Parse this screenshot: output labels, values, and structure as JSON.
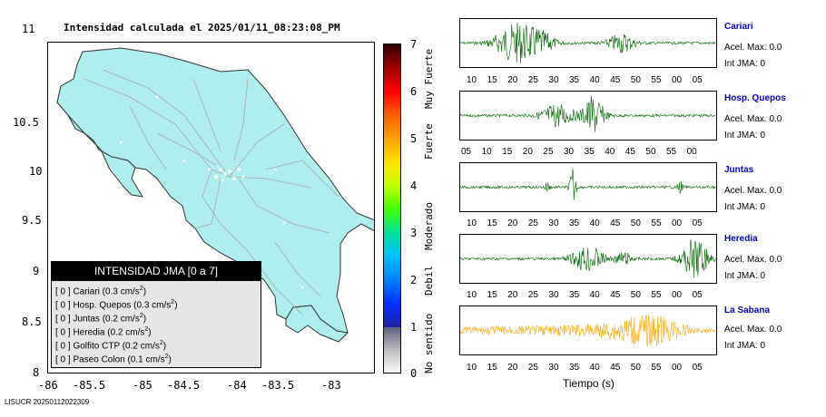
{
  "map": {
    "title": "Intensidad calculada el 2025/01/11_08:23:08_PM",
    "y_ticks": [
      "11",
      "10.5",
      "10",
      "9.5",
      "9",
      "8.5",
      "8"
    ],
    "x_ticks": [
      "-86",
      "-85.5",
      "-85",
      "-84.5",
      "-84",
      "-83.5",
      "-83"
    ],
    "land_color": "#b0eeee",
    "road_color": "#a8a8a8",
    "legend": {
      "header": "INTENSIDAD JMA [0 a 7]",
      "rows": [
        {
          "text": "[ 0 ]  Cariari (0.3 cm/s",
          "sup": "2",
          "tail": ")"
        },
        {
          "text": "[ 0 ]  Hosp. Quepos (0.3 cm/s",
          "sup": "2",
          "tail": ")"
        },
        {
          "text": "[ 0 ]  Juntas (0.2 cm/s",
          "sup": "2",
          "tail": ")"
        },
        {
          "text": "[ 0 ]  Heredia (0.2 cm/s",
          "sup": "2",
          "tail": ")"
        },
        {
          "text": "[ 0 ]  Golfito CTP (0.2 cm/s",
          "sup": "2",
          "tail": ")"
        },
        {
          "text": "[ 0 ]  Paseo Colon (0.1 cm/s",
          "sup": "2",
          "tail": ")"
        }
      ]
    }
  },
  "colorbar": {
    "ticks": [
      "7",
      "6",
      "5",
      "4",
      "3",
      "2",
      "1",
      "0"
    ],
    "labels": [
      "Muy Fuerte",
      "Fuerte",
      "Moderado",
      "Debil",
      "No sentido"
    ]
  },
  "stations": [
    {
      "name": "Cariari",
      "acel": "Acel. Max. 0.0",
      "int": "Int JMA: 0",
      "color": "#006400",
      "ticks": [
        "10",
        "15",
        "20",
        "25",
        "30",
        "35",
        "40",
        "45",
        "50",
        "55",
        "00",
        "05"
      ]
    },
    {
      "name": "Hosp. Quepos",
      "acel": "Acel. Max. 0.0",
      "int": "Int JMA: 0",
      "color": "#006400",
      "ticks": [
        "05",
        "10",
        "15",
        "20",
        "25",
        "30",
        "35",
        "40",
        "45",
        "50",
        "55",
        "00"
      ]
    },
    {
      "name": "Juntas",
      "acel": "Acel. Max. 0.0",
      "int": "Int JMA: 0",
      "color": "#006400",
      "ticks": [
        "10",
        "15",
        "20",
        "25",
        "30",
        "35",
        "40",
        "45",
        "50",
        "55",
        "00",
        "05"
      ]
    },
    {
      "name": "Heredia",
      "acel": "Acel. Max. 0.0",
      "int": "Int JMA: 0",
      "color": "#006400",
      "ticks": [
        "10",
        "15",
        "20",
        "25",
        "30",
        "35",
        "40",
        "45",
        "50",
        "55",
        "00",
        "05"
      ]
    },
    {
      "name": "La Sabana",
      "acel": "Acel. Max. 0.0",
      "int": "Int JMA: 0",
      "color": "#ffa500",
      "ticks": [
        "10",
        "15",
        "20",
        "25",
        "30",
        "35",
        "40",
        "45",
        "50",
        "55",
        "00",
        "05"
      ]
    }
  ],
  "xlabel": "Tiempo (s)",
  "footer": "LISUCR 20250112022309"
}
